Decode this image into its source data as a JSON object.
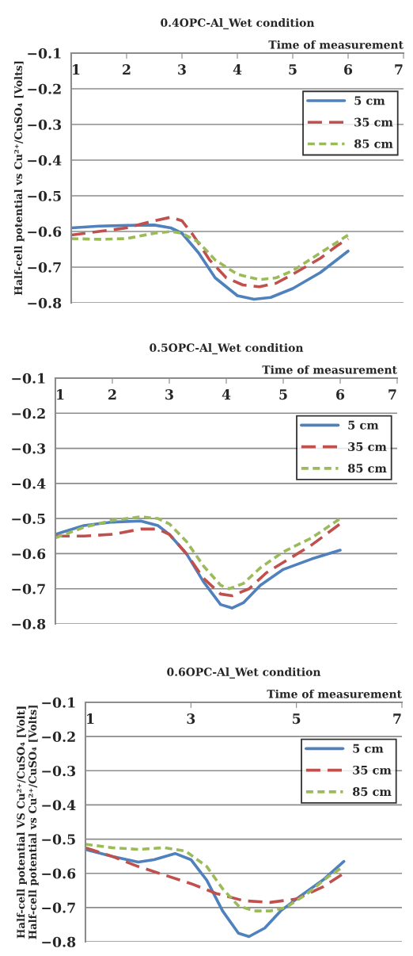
{
  "chart_data": [
    {
      "type": "line",
      "title": "0.4OPC-Al_Wet condition",
      "xlabel": "Time of measurement",
      "ylabel": "Half-cell potential vs Cu²⁺/CuSO₄ [Volts]",
      "xlim": [
        1,
        7
      ],
      "xticks": [
        1,
        2,
        3,
        4,
        5,
        6,
        7
      ],
      "ylim": [
        -0.8,
        -0.1
      ],
      "yticks": [
        -0.8,
        -0.7,
        -0.6,
        -0.5,
        -0.4,
        -0.3,
        -0.2,
        -0.1
      ],
      "grid": "y",
      "legend": "top right",
      "marker": "none",
      "series": [
        {
          "name": "5 cm",
          "color": "#4f81bd",
          "line_style": "solid",
          "x": [
            1,
            1.5,
            2,
            2.5,
            2.8,
            3,
            3.3,
            3.6,
            4,
            4.3,
            4.6,
            5,
            5.5,
            6
          ],
          "values": [
            -0.59,
            -0.585,
            -0.583,
            -0.582,
            -0.59,
            -0.605,
            -0.66,
            -0.73,
            -0.78,
            -0.79,
            -0.785,
            -0.76,
            -0.715,
            -0.655
          ]
        },
        {
          "name": "35 cm",
          "color": "#c0504d",
          "line_style": "dashed",
          "x": [
            1,
            1.5,
            2,
            2.5,
            2.8,
            3,
            3.2,
            3.5,
            3.8,
            4.1,
            4.4,
            4.7,
            5,
            5.5,
            5.8,
            6
          ],
          "values": [
            -0.61,
            -0.6,
            -0.59,
            -0.57,
            -0.56,
            -0.57,
            -0.61,
            -0.68,
            -0.73,
            -0.75,
            -0.755,
            -0.745,
            -0.72,
            -0.675,
            -0.64,
            -0.62
          ]
        },
        {
          "name": "85 cm",
          "color": "#9bbb59",
          "line_style": "dotted",
          "x": [
            1,
            1.5,
            2,
            2.5,
            2.8,
            3,
            3.3,
            3.6,
            4,
            4.4,
            4.7,
            5,
            5.5,
            6
          ],
          "values": [
            -0.62,
            -0.622,
            -0.62,
            -0.605,
            -0.6,
            -0.605,
            -0.63,
            -0.68,
            -0.72,
            -0.735,
            -0.73,
            -0.71,
            -0.66,
            -0.61
          ]
        }
      ]
    },
    {
      "type": "line",
      "title": "0.5OPC-Al_Wet condition",
      "xlabel": "Time of measurement",
      "xlim": [
        1,
        7
      ],
      "xticks": [
        1,
        2,
        3,
        4,
        5,
        6,
        7
      ],
      "ylim": [
        -0.8,
        -0.1
      ],
      "yticks": [
        -0.8,
        -0.7,
        -0.6,
        -0.5,
        -0.4,
        -0.3,
        -0.2,
        -0.1
      ],
      "grid": "y",
      "legend": "top right",
      "marker": "none",
      "series": [
        {
          "name": "5 cm",
          "color": "#4f81bd",
          "line_style": "solid",
          "x": [
            1,
            1.5,
            2,
            2.5,
            2.8,
            3,
            3.3,
            3.6,
            3.9,
            4.1,
            4.3,
            4.6,
            5,
            5.5,
            6
          ],
          "values": [
            -0.545,
            -0.52,
            -0.51,
            -0.507,
            -0.52,
            -0.545,
            -0.6,
            -0.68,
            -0.745,
            -0.755,
            -0.74,
            -0.69,
            -0.645,
            -0.615,
            -0.59
          ]
        },
        {
          "name": "35 cm",
          "color": "#c0504d",
          "line_style": "dashed",
          "x": [
            1,
            1.5,
            2,
            2.5,
            2.8,
            3,
            3.3,
            3.6,
            3.9,
            4.1,
            4.4,
            4.7,
            5,
            5.5,
            6
          ],
          "values": [
            -0.55,
            -0.55,
            -0.545,
            -0.53,
            -0.53,
            -0.545,
            -0.6,
            -0.67,
            -0.715,
            -0.72,
            -0.7,
            -0.655,
            -0.625,
            -0.575,
            -0.515
          ]
        },
        {
          "name": "85 cm",
          "color": "#9bbb59",
          "line_style": "dotted",
          "x": [
            1,
            1.5,
            2,
            2.5,
            2.8,
            3,
            3.3,
            3.6,
            3.9,
            4.05,
            4.3,
            4.6,
            5,
            5.5,
            6
          ],
          "values": [
            -0.555,
            -0.525,
            -0.505,
            -0.495,
            -0.5,
            -0.515,
            -0.565,
            -0.635,
            -0.69,
            -0.7,
            -0.685,
            -0.64,
            -0.595,
            -0.555,
            -0.5
          ]
        }
      ]
    },
    {
      "type": "line",
      "title": "0.6OPC-Al_Wet condition",
      "xlabel": "Time of measurement",
      "ylabel": "Half-cell potential VS Cu²⁺/CuSO₄ [Volt]\nHalf-cell potential vs Cu²⁺/CuSO₄ [Volts]",
      "xlim": [
        1,
        7
      ],
      "xticks": [
        1,
        3,
        5,
        7
      ],
      "ylim": [
        -0.8,
        -0.1
      ],
      "yticks": [
        -0.8,
        -0.7,
        -0.6,
        -0.5,
        -0.4,
        -0.3,
        -0.2,
        -0.1
      ],
      "grid": "y",
      "legend": "top right",
      "marker": "none",
      "series": [
        {
          "name": "5 cm",
          "color": "#4f81bd",
          "line_style": "solid",
          "x": [
            1,
            1.5,
            2,
            2.3,
            2.7,
            3,
            3.3,
            3.6,
            3.9,
            4.1,
            4.4,
            4.7,
            5,
            5.5,
            5.9
          ],
          "values": [
            -0.53,
            -0.55,
            -0.567,
            -0.56,
            -0.542,
            -0.56,
            -0.62,
            -0.71,
            -0.775,
            -0.785,
            -0.76,
            -0.71,
            -0.675,
            -0.62,
            -0.565
          ]
        },
        {
          "name": "35 cm",
          "color": "#c0504d",
          "line_style": "dashed",
          "x": [
            1,
            1.5,
            2,
            2.5,
            3,
            3.5,
            4,
            4.5,
            5,
            5.5,
            5.9
          ],
          "values": [
            -0.525,
            -0.55,
            -0.58,
            -0.605,
            -0.63,
            -0.66,
            -0.68,
            -0.685,
            -0.675,
            -0.64,
            -0.6
          ]
        },
        {
          "name": "85 cm",
          "color": "#9bbb59",
          "line_style": "dotted",
          "x": [
            1,
            1.5,
            2,
            2.5,
            2.9,
            3.3,
            3.6,
            3.9,
            4.2,
            4.5,
            4.8,
            5.2,
            5.6,
            5.9
          ],
          "values": [
            -0.515,
            -0.525,
            -0.53,
            -0.525,
            -0.535,
            -0.58,
            -0.645,
            -0.695,
            -0.71,
            -0.71,
            -0.7,
            -0.66,
            -0.61,
            -0.58
          ]
        }
      ]
    }
  ]
}
